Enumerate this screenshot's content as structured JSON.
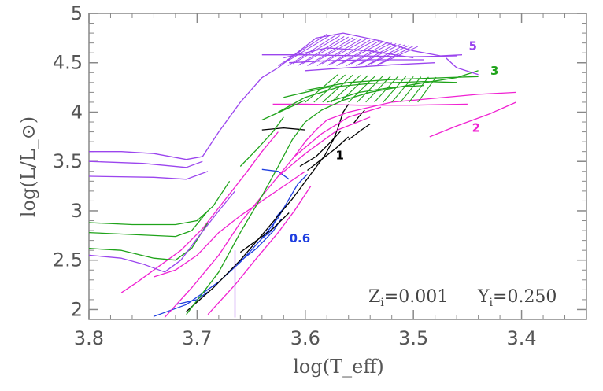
{
  "chart_data": {
    "type": "line",
    "xlabel": "log(T_eff)",
    "ylabel": "log(L/L_⊙)",
    "xlim": [
      3.8,
      3.34
    ],
    "ylim": [
      1.9,
      5.0
    ],
    "x_axis_reversed": true,
    "x_ticks": [
      "3.8",
      "3.7",
      "3.6",
      "3.5",
      "3.4"
    ],
    "y_ticks": [
      "2",
      "2.5",
      "3",
      "3.5",
      "4",
      "4.5",
      "5"
    ],
    "info_left": "Z",
    "info_left_sub": "i",
    "info_left_value": "=0.001",
    "info_right": "Y",
    "info_right_sub": "i",
    "info_right_value": "=0.250",
    "series": [
      {
        "name": "0.6",
        "color": "#1f3fe0",
        "label_pos": [
          3.605,
          2.68
        ],
        "tracks": [
          [
            [
              3.74,
              1.93
            ],
            [
              3.71,
              2.05
            ],
            [
              3.68,
              2.28
            ],
            [
              3.66,
              2.48
            ],
            [
              3.64,
              2.72
            ],
            [
              3.625,
              2.93
            ],
            [
              3.615,
              3.12
            ],
            [
              3.607,
              3.27
            ],
            [
              3.598,
              3.37
            ]
          ],
          [
            [
              3.665,
              2.45
            ],
            [
              3.645,
              2.62
            ],
            [
              3.63,
              2.79
            ],
            [
              3.622,
              2.92
            ]
          ],
          [
            [
              3.64,
              2.72
            ],
            [
              3.632,
              2.79
            ],
            [
              3.626,
              2.95
            ],
            [
              3.618,
              3.05
            ]
          ],
          [
            [
              3.64,
              3.42
            ],
            [
              3.625,
              3.4
            ],
            [
              3.615,
              3.32
            ]
          ],
          [
            [
              3.72,
              2.05
            ],
            [
              3.7,
              2.1
            ],
            [
              3.69,
              2.18
            ]
          ]
        ]
      },
      {
        "name": "1",
        "color": "#000000",
        "label_pos": [
          3.568,
          3.52
        ],
        "tracks": [
          [
            [
              3.71,
              1.98
            ],
            [
              3.685,
              2.22
            ],
            [
              3.66,
              2.5
            ],
            [
              3.635,
              2.82
            ],
            [
              3.612,
              3.12
            ],
            [
              3.595,
              3.37
            ],
            [
              3.582,
              3.56
            ],
            [
              3.574,
              3.72
            ],
            [
              3.57,
              3.83
            ],
            [
              3.565,
              4.0
            ],
            [
              3.56,
              4.08
            ]
          ],
          [
            [
              3.605,
              3.45
            ],
            [
              3.59,
              3.55
            ],
            [
              3.578,
              3.68
            ],
            [
              3.567,
              3.81
            ]
          ],
          [
            [
              3.66,
              2.58
            ],
            [
              3.63,
              2.82
            ],
            [
              3.615,
              2.98
            ]
          ],
          [
            [
              3.598,
              3.41
            ],
            [
              3.585,
              3.52
            ],
            [
              3.572,
              3.63
            ],
            [
              3.56,
              3.75
            ]
          ],
          [
            [
              3.555,
              3.89
            ],
            [
              3.55,
              3.96
            ],
            [
              3.545,
              4.02
            ]
          ],
          [
            [
              3.54,
              3.88
            ],
            [
              3.548,
              3.82
            ],
            [
              3.56,
              3.72
            ]
          ],
          [
            [
              3.64,
              3.82
            ],
            [
              3.62,
              3.84
            ],
            [
              3.6,
              3.82
            ]
          ]
        ]
      },
      {
        "name": "2",
        "color": "#f022d2",
        "label_pos": [
          3.442,
          3.8
        ],
        "tracks": [
          [
            [
              3.73,
              1.92
            ],
            [
              3.705,
              2.22
            ],
            [
              3.68,
              2.55
            ],
            [
              3.66,
              2.88
            ],
            [
              3.64,
              3.15
            ],
            [
              3.625,
              3.35
            ],
            [
              3.61,
              3.55
            ],
            [
              3.6,
              3.7
            ],
            [
              3.59,
              3.82
            ],
            [
              3.58,
              3.92
            ],
            [
              3.56,
              4.0
            ],
            [
              3.52,
              4.1
            ],
            [
              3.48,
              4.14
            ],
            [
              3.44,
              4.18
            ],
            [
              3.405,
              4.2
            ]
          ],
          [
            [
              3.485,
              3.75
            ],
            [
              3.46,
              3.86
            ],
            [
              3.43,
              3.98
            ],
            [
              3.405,
              4.1
            ]
          ],
          [
            [
              3.74,
              2.33
            ],
            [
              3.72,
              2.4
            ],
            [
              3.7,
              2.55
            ],
            [
              3.68,
              2.78
            ],
            [
              3.66,
              2.95
            ],
            [
              3.64,
              3.1
            ],
            [
              3.62,
              3.25
            ],
            [
              3.6,
              3.4
            ]
          ],
          [
            [
              3.77,
              2.17
            ],
            [
              3.755,
              2.28
            ],
            [
              3.735,
              2.44
            ],
            [
              3.715,
              2.6
            ],
            [
              3.695,
              2.82
            ],
            [
              3.675,
              3.1
            ],
            [
              3.655,
              3.38
            ],
            [
              3.64,
              3.6
            ],
            [
              3.625,
              3.8
            ]
          ],
          [
            [
              3.69,
              1.95
            ],
            [
              3.665,
              2.25
            ],
            [
              3.645,
              2.52
            ],
            [
              3.625,
              2.78
            ],
            [
              3.61,
              3.0
            ],
            [
              3.595,
              3.25
            ]
          ],
          [
            [
              3.63,
              4.08
            ],
            [
              3.6,
              4.08
            ],
            [
              3.55,
              4.07
            ],
            [
              3.5,
              4.07
            ],
            [
              3.45,
              4.08
            ]
          ],
          [
            [
              3.61,
              3.55
            ],
            [
              3.585,
              3.78
            ],
            [
              3.56,
              3.95
            ],
            [
              3.53,
              4.05
            ]
          ],
          [
            [
              3.625,
              3.35
            ],
            [
              3.6,
              3.58
            ],
            [
              3.57,
              3.82
            ],
            [
              3.54,
              3.95
            ]
          ]
        ]
      },
      {
        "name": "3",
        "color": "#1fa31a",
        "label_pos": [
          3.425,
          4.38
        ],
        "tracks": [
          [
            [
              3.71,
              1.95
            ],
            [
              3.68,
              2.38
            ],
            [
              3.66,
              2.78
            ],
            [
              3.64,
              3.15
            ],
            [
              3.625,
              3.45
            ],
            [
              3.612,
              3.72
            ],
            [
              3.6,
              3.9
            ],
            [
              3.585,
              4.02
            ],
            [
              3.565,
              4.12
            ],
            [
              3.54,
              4.2
            ],
            [
              3.5,
              4.28
            ],
            [
              3.46,
              4.35
            ],
            [
              3.44,
              4.42
            ]
          ],
          [
            [
              3.8,
              2.88
            ],
            [
              3.76,
              2.86
            ],
            [
              3.72,
              2.86
            ],
            [
              3.7,
              2.9
            ],
            [
              3.685,
              3.05
            ],
            [
              3.67,
              3.3
            ]
          ],
          [
            [
              3.8,
              2.78
            ],
            [
              3.76,
              2.76
            ],
            [
              3.72,
              2.74
            ],
            [
              3.705,
              2.8
            ],
            [
              3.69,
              3.0
            ]
          ],
          [
            [
              3.8,
              2.62
            ],
            [
              3.77,
              2.6
            ],
            [
              3.74,
              2.52
            ],
            [
              3.72,
              2.5
            ],
            [
              3.705,
              2.62
            ],
            [
              3.69,
              2.88
            ]
          ],
          [
            [
              3.6,
              4.22
            ],
            [
              3.56,
              4.3
            ],
            [
              3.52,
              4.33
            ],
            [
              3.47,
              4.35
            ],
            [
              3.44,
              4.36
            ]
          ],
          [
            [
              3.62,
              4.15
            ],
            [
              3.58,
              4.25
            ],
            [
              3.54,
              4.29
            ],
            [
              3.49,
              4.31
            ],
            [
              3.46,
              4.3
            ]
          ],
          [
            [
              3.58,
              4.1
            ],
            [
              3.55,
              4.2
            ],
            [
              3.52,
              4.25
            ],
            [
              3.49,
              4.27
            ]
          ],
          [
            [
              3.64,
              3.92
            ],
            [
              3.62,
              4.02
            ],
            [
              3.6,
              4.12
            ]
          ],
          [
            [
              3.66,
              3.45
            ],
            [
              3.645,
              3.62
            ],
            [
              3.63,
              3.8
            ],
            [
              3.62,
              3.95
            ]
          ],
          [
            [
              3.625,
              4.0
            ],
            [
              3.6,
              4.15
            ],
            [
              3.57,
              4.25
            ]
          ]
        ]
      },
      {
        "name": "5",
        "color": "#9b45ee",
        "label_pos": [
          3.445,
          4.63
        ],
        "tracks": [
          [
            [
              3.8,
              3.6
            ],
            [
              3.77,
              3.6
            ],
            [
              3.74,
              3.58
            ],
            [
              3.71,
              3.52
            ],
            [
              3.695,
              3.55
            ],
            [
              3.68,
              3.8
            ],
            [
              3.66,
              4.1
            ],
            [
              3.64,
              4.35
            ],
            [
              3.625,
              4.45
            ],
            [
              3.61,
              4.58
            ],
            [
              3.59,
              4.75
            ],
            [
              3.565,
              4.8
            ],
            [
              3.53,
              4.72
            ],
            [
              3.5,
              4.62
            ],
            [
              3.475,
              4.57
            ],
            [
              3.455,
              4.58
            ]
          ],
          [
            [
              3.8,
              3.5
            ],
            [
              3.75,
              3.48
            ],
            [
              3.71,
              3.44
            ],
            [
              3.695,
              3.5
            ]
          ],
          [
            [
              3.8,
              3.35
            ],
            [
              3.74,
              3.34
            ],
            [
              3.71,
              3.32
            ],
            [
              3.69,
              3.4
            ]
          ],
          [
            [
              3.8,
              2.55
            ],
            [
              3.77,
              2.52
            ],
            [
              3.75,
              2.46
            ],
            [
              3.73,
              2.38
            ],
            [
              3.715,
              2.5
            ],
            [
              3.7,
              2.72
            ],
            [
              3.68,
              3.0
            ],
            [
              3.665,
              3.2
            ]
          ],
          [
            [
              3.665,
              1.92
            ],
            [
              3.665,
              2.4
            ],
            [
              3.665,
              2.6
            ]
          ],
          [
            [
              3.64,
              4.58
            ],
            [
              3.6,
              4.58
            ],
            [
              3.55,
              4.57
            ],
            [
              3.5,
              4.56
            ],
            [
              3.46,
              4.57
            ]
          ],
          [
            [
              3.6,
              4.42
            ],
            [
              3.56,
              4.45
            ],
            [
              3.52,
              4.48
            ],
            [
              3.48,
              4.5
            ]
          ],
          [
            [
              3.615,
              4.5
            ],
            [
              3.58,
              4.52
            ],
            [
              3.54,
              4.53
            ],
            [
              3.49,
              4.53
            ]
          ],
          [
            [
              3.62,
              4.55
            ],
            [
              3.58,
              4.65
            ],
            [
              3.54,
              4.62
            ],
            [
              3.5,
              4.55
            ]
          ],
          [
            [
              3.47,
              4.55
            ],
            [
              3.46,
              4.45
            ],
            [
              3.44,
              4.38
            ]
          ]
        ]
      }
    ]
  }
}
